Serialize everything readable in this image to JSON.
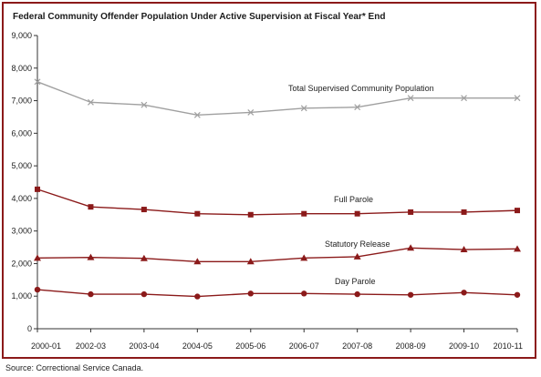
{
  "title": "Federal Community Offender Population Under Active Supervision at Fiscal Year* End",
  "source": "Source:  Correctional Service Canada.",
  "chart_data": {
    "type": "line",
    "title": "Federal Community Offender Population Under Active Supervision at Fiscal Year* End",
    "x": [
      "2000-01",
      "2002-03",
      "2003-04",
      "2004-05",
      "2005-06",
      "2006-07",
      "2007-08",
      "2008-09",
      "2009-10",
      "2010-11"
    ],
    "ylim": [
      0,
      9000
    ],
    "yticks": [
      "0",
      "1,000",
      "2,000",
      "3,000",
      "4,000",
      "5,000",
      "6,000",
      "7,000",
      "8,000",
      "9,000"
    ],
    "grid": false,
    "legend": "none (series labeled inline)",
    "series": [
      {
        "name": "Total Supervised Community Population",
        "color": "#a0a0a0",
        "marker": "x",
        "values": [
          7580,
          6950,
          6870,
          6560,
          6640,
          6770,
          6800,
          7080,
          7080,
          7080
        ]
      },
      {
        "name": "Full Parole",
        "color": "#8b1a1a",
        "marker": "square",
        "values": [
          4280,
          3740,
          3660,
          3530,
          3500,
          3530,
          3530,
          3580,
          3580,
          3630
        ]
      },
      {
        "name": "Statutory Release",
        "color": "#8b1a1a",
        "marker": "triangle",
        "values": [
          2170,
          2190,
          2160,
          2060,
          2060,
          2170,
          2210,
          2480,
          2430,
          2450
        ]
      },
      {
        "name": "Day Parole",
        "color": "#8b1a1a",
        "marker": "circle",
        "values": [
          1200,
          1060,
          1060,
          990,
          1080,
          1080,
          1060,
          1040,
          1110,
          1040
        ]
      }
    ]
  }
}
